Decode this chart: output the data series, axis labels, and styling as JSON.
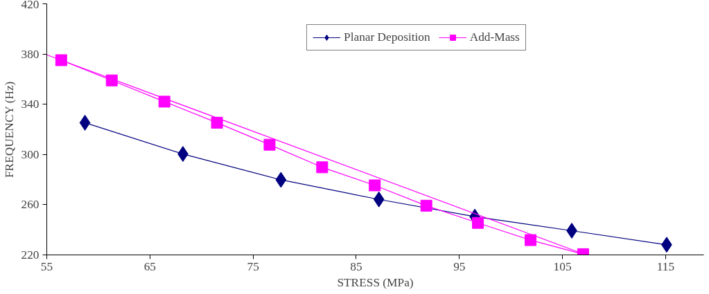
{
  "chart_data": {
    "type": "line",
    "xlabel": "STRESS (MPa)",
    "ylabel": "FREQUENCY (Hz)",
    "xlim": [
      55,
      118.7
    ],
    "xticks": [
      55,
      65,
      75,
      85,
      95,
      105,
      115
    ],
    "ylim": [
      220,
      420
    ],
    "yticks": [
      220,
      260,
      300,
      340,
      380,
      420
    ],
    "grid": false,
    "legend": "top right",
    "series": [
      {
        "name": "Planar Deposition",
        "color": "#000080",
        "marker": "diamond",
        "x": [
          58.7,
          68.2,
          77.7,
          87.2,
          96.5,
          105.9,
          115.1
        ],
        "values": [
          325.3,
          300.4,
          279.8,
          264.2,
          250.5,
          239.3,
          228.1
        ]
      },
      {
        "name": "Add-Mass",
        "color": "#ff00ff",
        "marker": "square",
        "x": [
          56.4,
          61.3,
          66.4,
          71.5,
          76.6,
          81.7,
          86.8,
          91.8,
          96.8,
          101.9,
          107.0
        ],
        "values": [
          375.1,
          359,
          342.1,
          325.3,
          307.8,
          289.8,
          275.4,
          259.2,
          245.5,
          231.8,
          220.6
        ]
      },
      {
        "color": "#ff00ff",
        "marker": "none",
        "x": [
          55,
          107.3
        ],
        "values": [
          379.4,
          220
        ]
      }
    ]
  }
}
